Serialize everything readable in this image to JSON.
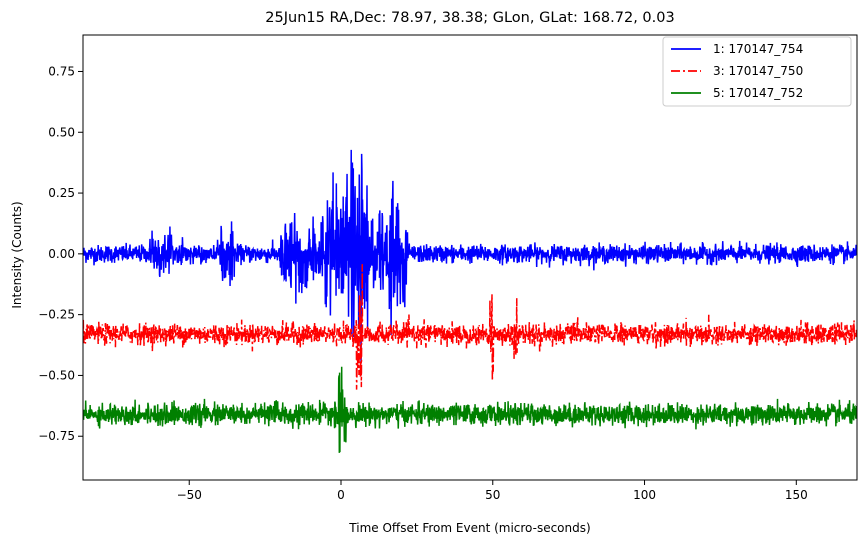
{
  "chart_data": {
    "type": "line",
    "title": "25Jun15 RA,Dec:   78.97,  38.38; GLon, GLat:  168.72,   0.03",
    "xlabel": "Time Offset From Event (micro-seconds)",
    "ylabel": "Intensity (Counts)",
    "xlim": [
      -85,
      170
    ],
    "ylim": [
      -0.93,
      0.9
    ],
    "xticks": [
      -50,
      0,
      50,
      100,
      150
    ],
    "xtick_labels": [
      "−50",
      "0",
      "50",
      "100",
      "150"
    ],
    "yticks": [
      0.75,
      0.5,
      0.25,
      0.0,
      -0.25,
      -0.5,
      -0.75
    ],
    "ytick_labels": [
      "0.75",
      "0.50",
      "0.25",
      "0.00",
      "−0.25",
      "−0.50",
      "−0.75"
    ],
    "grid": false,
    "legend_position": "upper-right",
    "series": [
      {
        "name": "1: 170147_754",
        "color": "#0000ff",
        "style": "solid",
        "baseline": 0.0,
        "noise": 0.03,
        "features": [
          {
            "x_start": -63,
            "x_end": -55,
            "amplitude": 0.08
          },
          {
            "x_start": -40,
            "x_end": -35,
            "amplitude": 0.1
          },
          {
            "x_start": -20,
            "x_end": -5,
            "amplitude": 0.12
          },
          {
            "x_start": -5,
            "x_end": 3,
            "amplitude": 0.24
          },
          {
            "x_start": 3,
            "x_end": 9,
            "amplitude": 0.4
          },
          {
            "x_start": 9,
            "x_end": 16,
            "amplitude": 0.15
          },
          {
            "x_start": 16,
            "x_end": 22,
            "amplitude": 0.2
          }
        ]
      },
      {
        "name": "3: 170147_750",
        "color": "#ff0000",
        "style": "dashdot",
        "baseline": -0.33,
        "noise": 0.035,
        "features": [
          {
            "x_start": 49,
            "x_end": 50.5,
            "amplitude": 0.17
          },
          {
            "x_start": 57,
            "x_end": 58,
            "amplitude": 0.14
          },
          {
            "x_start": 5,
            "x_end": 7,
            "amplitude": 0.23
          }
        ]
      },
      {
        "name": "5: 170147_752",
        "color": "#008000",
        "style": "solid",
        "baseline": -0.66,
        "noise": 0.035,
        "features": [
          {
            "x_start": -1,
            "x_end": 2,
            "amplitude": 0.2
          }
        ]
      }
    ]
  }
}
